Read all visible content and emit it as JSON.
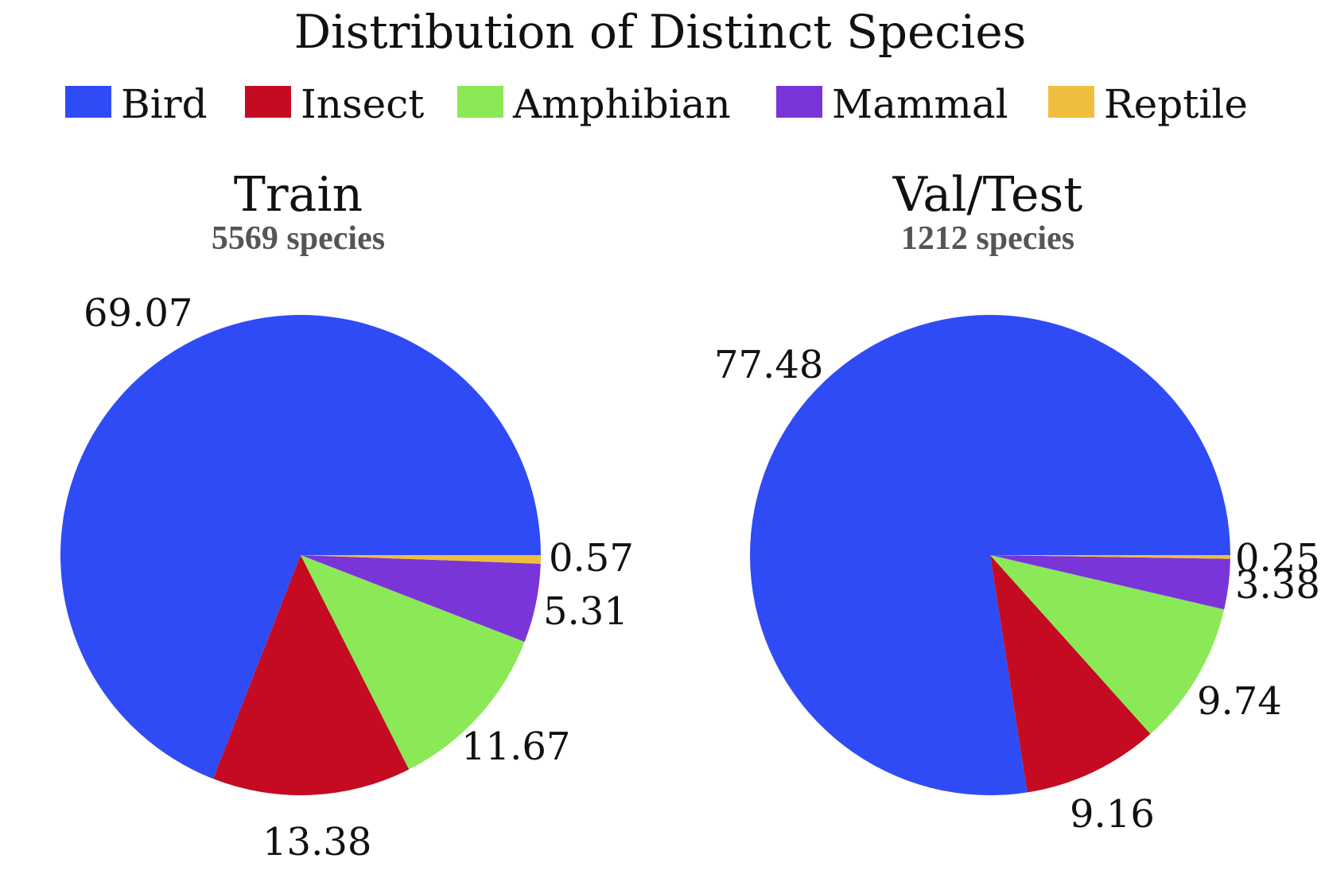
{
  "title": "Distribution of Distinct Species",
  "legend": [
    {
      "label": "Bird",
      "color": "#2f4bf5"
    },
    {
      "label": "Insect",
      "color": "#c40b22"
    },
    {
      "label": "Amphibian",
      "color": "#8be958"
    },
    {
      "label": "Mammal",
      "color": "#7a35d8"
    },
    {
      "label": "Reptile",
      "color": "#f0be3f"
    }
  ],
  "chart_data": [
    {
      "type": "pie",
      "title": "Train",
      "subtitle": "5569 species",
      "categories": [
        "Bird",
        "Insect",
        "Amphibian",
        "Mammal",
        "Reptile"
      ],
      "values": [
        69.07,
        13.38,
        11.67,
        5.31,
        0.57
      ],
      "labels": [
        "69.07",
        "13.38",
        "11.67",
        "5.31",
        "0.57"
      ],
      "start_angle_deg": 0,
      "direction": "counterclockwise"
    },
    {
      "type": "pie",
      "title": "Val/Test",
      "subtitle": "1212 species",
      "categories": [
        "Bird",
        "Insect",
        "Amphibian",
        "Mammal",
        "Reptile"
      ],
      "values": [
        77.48,
        9.16,
        9.74,
        3.38,
        0.25
      ],
      "labels": [
        "77.48",
        "9.16",
        "9.74",
        "3.38",
        "0.25"
      ],
      "start_angle_deg": 0,
      "direction": "counterclockwise"
    }
  ]
}
